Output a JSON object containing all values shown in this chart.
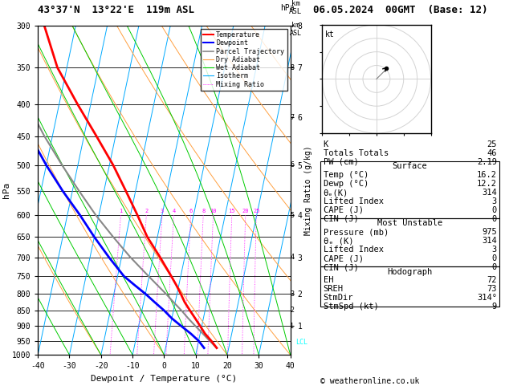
{
  "title_left": "43°37'N  13°22'E  119m ASL",
  "title_right": "06.05.2024  00GMT  (Base: 12)",
  "ylabel_left": "hPa",
  "xlabel": "Dewpoint / Temperature (°C)",
  "pressure_levels": [
    300,
    350,
    400,
    450,
    500,
    550,
    600,
    650,
    700,
    750,
    800,
    850,
    900,
    950,
    1000
  ],
  "xlim": [
    -40,
    40
  ],
  "temp_color": "#ff0000",
  "dewp_color": "#0000ff",
  "parcel_color": "#888888",
  "dry_adiabat_color": "#ffa040",
  "wet_adiabat_color": "#00cc00",
  "isotherm_color": "#00aaff",
  "mixing_color": "#ff00ff",
  "temp_data": {
    "pressure": [
      975,
      950,
      925,
      900,
      875,
      850,
      825,
      800,
      775,
      750,
      700,
      650,
      600,
      550,
      500,
      450,
      400,
      350,
      300
    ],
    "temp": [
      16.2,
      14.0,
      11.5,
      9.5,
      7.4,
      5.2,
      3.0,
      1.2,
      -0.8,
      -3.0,
      -7.8,
      -13.2,
      -17.8,
      -23.0,
      -28.8,
      -36.0,
      -44.2,
      -53.0,
      -60.0
    ]
  },
  "dewp_data": {
    "pressure": [
      975,
      950,
      925,
      900,
      875,
      850,
      825,
      800,
      775,
      750,
      700,
      650,
      600,
      550,
      500,
      450,
      400,
      350,
      300
    ],
    "dewp": [
      12.2,
      10.0,
      7.0,
      3.5,
      0.0,
      -3.0,
      -6.5,
      -10.0,
      -14.0,
      -18.0,
      -24.0,
      -30.0,
      -36.0,
      -43.0,
      -50.0,
      -57.0,
      -63.0,
      -68.0,
      -72.0
    ]
  },
  "parcel_data": {
    "pressure": [
      975,
      950,
      925,
      900,
      875,
      850,
      825,
      800,
      775,
      750,
      700,
      650,
      600,
      550,
      500,
      450,
      400,
      350,
      300
    ],
    "temp": [
      16.2,
      13.5,
      10.8,
      8.0,
      5.2,
      2.5,
      -0.5,
      -3.5,
      -6.8,
      -10.2,
      -17.2,
      -24.0,
      -31.0,
      -37.8,
      -45.0,
      -52.5,
      -60.0,
      -67.0,
      -73.0
    ]
  },
  "lcl_pressure": 955,
  "mixing_ratios": [
    1,
    2,
    3,
    4,
    6,
    8,
    10,
    15,
    20,
    25
  ],
  "km_ticks": [
    1,
    2,
    3,
    4,
    5,
    6,
    7,
    8
  ],
  "km_pressures": [
    900,
    800,
    700,
    600,
    500,
    420,
    350,
    300
  ],
  "sounding_info": {
    "K": 25,
    "Totals_Totals": 46,
    "PW_cm": 2.19,
    "Surface_Temp": 16.2,
    "Surface_Dewp": 12.2,
    "Surface_theta_e": 314,
    "Surface_LI": 3,
    "Surface_CAPE": 0,
    "Surface_CIN": 0,
    "MU_Pressure": 975,
    "MU_theta_e": 314,
    "MU_LI": 3,
    "MU_CAPE": 0,
    "MU_CIN": 0,
    "EH": 72,
    "SREH": 73,
    "StmDir": 314,
    "StmSpd": 9
  },
  "footer": "© weatheronline.co.uk"
}
